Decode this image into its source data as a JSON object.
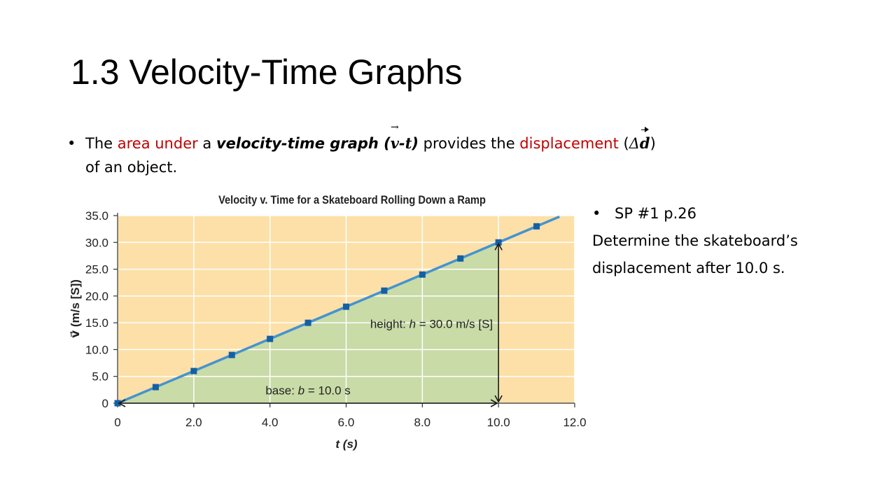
{
  "slide": {
    "title": "1.3 Velocity-Time Graphs",
    "bullet": {
      "symbol": "•",
      "t1": "The ",
      "t2": "area under",
      "t3": " a ",
      "t4": "velocity-time graph (",
      "v": "v",
      "arrow": "→",
      "dash": "-",
      "t": "t",
      "close": ")",
      "t5": " provides the ",
      "t6": "displacement",
      "t7": " (",
      "delta": "Δ",
      "d": "d",
      "t8": ")",
      "line2": "of an object."
    },
    "side": {
      "symbol": "•",
      "item": "SP #1 p.26",
      "line1": "Determine the skateboard’s",
      "line2": "displacement after 10.0 s."
    }
  },
  "chart_data": {
    "type": "line",
    "title": "Velocity v. Time for a Skateboard Rolling Down a Ramp",
    "xlabel": "t (s)",
    "ylabel": "v⃗ (m/s [S])",
    "xlim": [
      0,
      12
    ],
    "ylim": [
      0,
      35
    ],
    "xticks": [
      "0",
      "2.0",
      "4.0",
      "6.0",
      "8.0",
      "10.0",
      "12.0"
    ],
    "xtick_values": [
      0,
      2,
      4,
      6,
      8,
      10,
      12
    ],
    "yticks": [
      "0",
      "5.0",
      "10.0",
      "15.0",
      "20.0",
      "25.0",
      "30.0",
      "35.0"
    ],
    "ytick_values": [
      0,
      5,
      10,
      15,
      20,
      25,
      30,
      35
    ],
    "grid": true,
    "series": [
      {
        "x": [
          0,
          1,
          2,
          3,
          4,
          5,
          6,
          7,
          8,
          9,
          10,
          11
        ],
        "values": [
          0,
          3,
          6,
          9,
          12,
          15,
          18,
          21,
          24,
          27,
          30,
          33
        ]
      }
    ],
    "line_extends_to": [
      11.6,
      34.8
    ],
    "shaded_area": {
      "x": [
        0,
        10
      ],
      "y_top_at_end": 30
    },
    "annotations": {
      "height": "height: h = 30.0 m/s [S]",
      "height_parts": [
        "height: ",
        "h",
        " = 30.0 m/s [S]"
      ],
      "base": "base: b = 10.0 s",
      "base_parts": [
        "base: ",
        "b",
        " = 10.0 s"
      ]
    },
    "colors": {
      "background": "#fce0a8",
      "area": "#c9dba6",
      "grid": "#ffffff",
      "line": "#4593cf",
      "markers": "#1460a4",
      "annotation_arrows": "#1a1a1a"
    }
  }
}
